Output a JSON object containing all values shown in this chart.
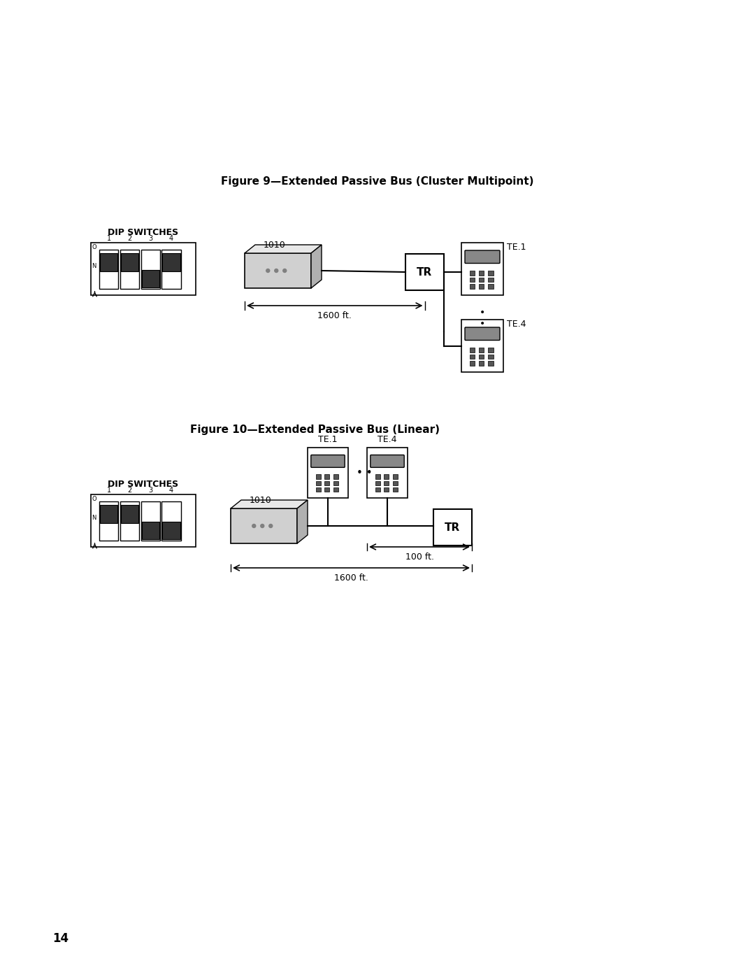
{
  "fig9_title": "Figure 9—Extended Passive Bus (Cluster Multipoint)",
  "fig10_title": "Figure 10—Extended Passive Bus (Linear)",
  "page_number": "14",
  "bg_color": "#ffffff",
  "fg_color": "#000000"
}
